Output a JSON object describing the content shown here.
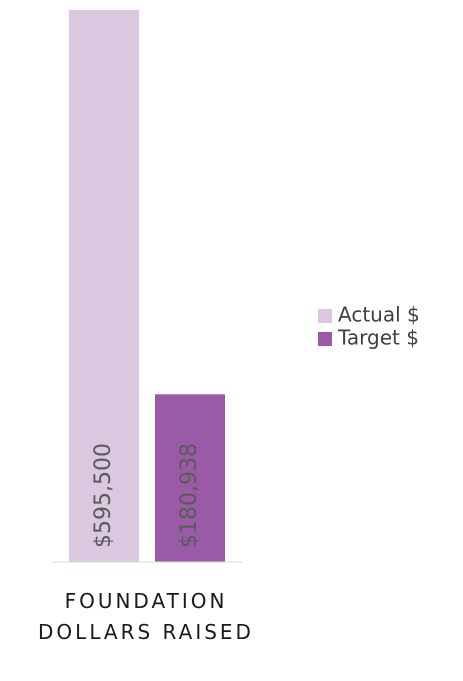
{
  "chart_data": {
    "type": "bar",
    "categories": [
      "FOUNDATION DOLLARS RAISED"
    ],
    "series": [
      {
        "name": "Actual $",
        "color": "#dcc7e1",
        "values": [
          595500
        ],
        "value_labels": [
          "$595,500"
        ]
      },
      {
        "name": "Target $",
        "color": "#9b5aa6",
        "values": [
          180938
        ],
        "value_labels": [
          "$180,938"
        ]
      }
    ],
    "legend": "right"
  }
}
